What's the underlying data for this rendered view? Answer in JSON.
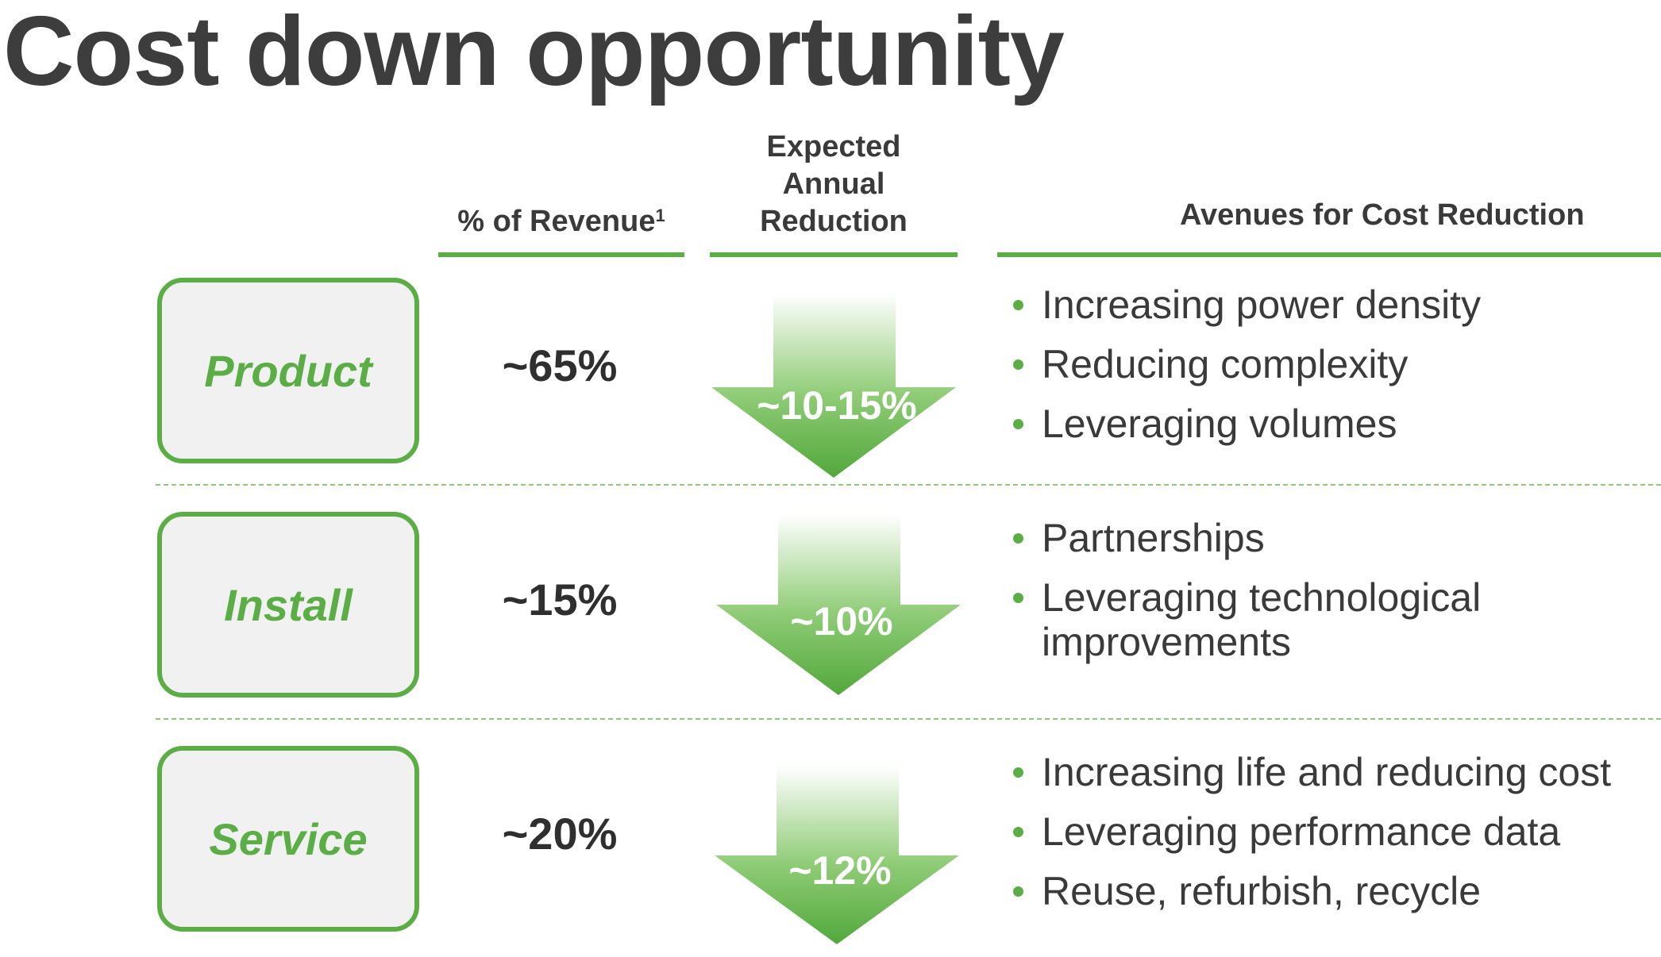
{
  "title": "Cost down opportunity",
  "headers": {
    "revenue": "% of Revenue",
    "revenue_footnote": "1",
    "reduction_line1": "Expected",
    "reduction_line2": "Annual",
    "reduction_line3": "Reduction",
    "avenues": "Avenues for Cost Reduction"
  },
  "colors": {
    "accent_green": "#5aae45",
    "box_fill": "#f1f1f1",
    "text_dark": "#3a3a3a"
  },
  "rows": [
    {
      "category": "Product",
      "revenue_share": "~65%",
      "annual_reduction": "~10-15%",
      "avenues": [
        "Increasing power density",
        "Reducing complexity",
        "Leveraging volumes"
      ]
    },
    {
      "category": "Install",
      "revenue_share": "~15%",
      "annual_reduction": "~10%",
      "avenues": [
        "Partnerships",
        "Leveraging technological improvements"
      ]
    },
    {
      "category": "Service",
      "revenue_share": "~20%",
      "annual_reduction": "~12%",
      "avenues": [
        "Increasing life and reducing cost",
        "Leveraging performance data",
        "Reuse, refurbish, recycle"
      ]
    }
  ]
}
